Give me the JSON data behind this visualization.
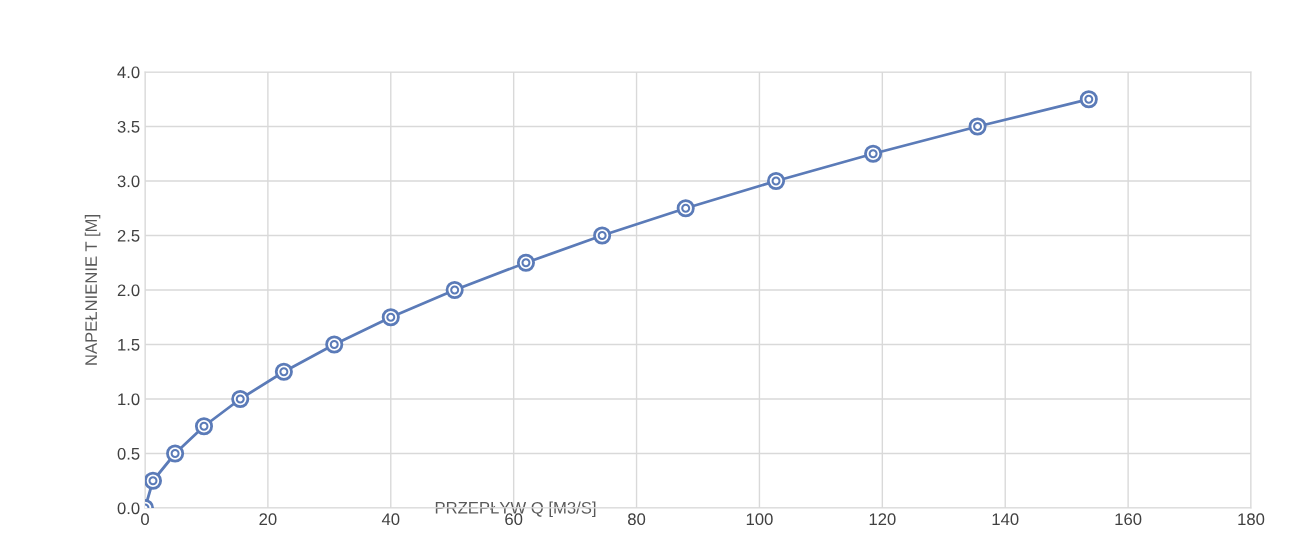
{
  "chart_data": {
    "type": "line",
    "xlabel": "PRZEPŁYW Q [M3/S]",
    "ylabel": "NAPEŁNIENIE T [M]",
    "x": [
      0,
      1.3,
      4.9,
      9.6,
      15.5,
      22.6,
      30.8,
      40.0,
      50.4,
      62.0,
      74.4,
      88.0,
      102.7,
      118.5,
      135.5,
      153.6
    ],
    "series": [
      {
        "color": "#5b7bb8",
        "values": [
          0,
          0.25,
          0.5,
          0.75,
          1.0,
          1.25,
          1.5,
          1.75,
          2.0,
          2.25,
          2.5,
          2.75,
          3.0,
          3.25,
          3.5,
          3.75
        ]
      }
    ],
    "xlim": [
      0,
      180
    ],
    "xticks": [
      0,
      20,
      40,
      60,
      80,
      100,
      120,
      140,
      160,
      180
    ],
    "ylim": [
      0,
      4
    ],
    "yticks": [
      {
        "value": 0,
        "label": "0.0"
      },
      {
        "value": 0.5,
        "label": "0.5"
      },
      {
        "value": 1,
        "label": "1.0"
      },
      {
        "value": 1.5,
        "label": "1.5"
      },
      {
        "value": 2,
        "label": "2.0"
      },
      {
        "value": 2.5,
        "label": "2.5"
      },
      {
        "value": 3,
        "label": "3.0"
      },
      {
        "value": 3.5,
        "label": "3.5"
      },
      {
        "value": 4,
        "label": "4.0"
      }
    ],
    "grid": true,
    "marker": "circle",
    "line_style": "solid"
  }
}
